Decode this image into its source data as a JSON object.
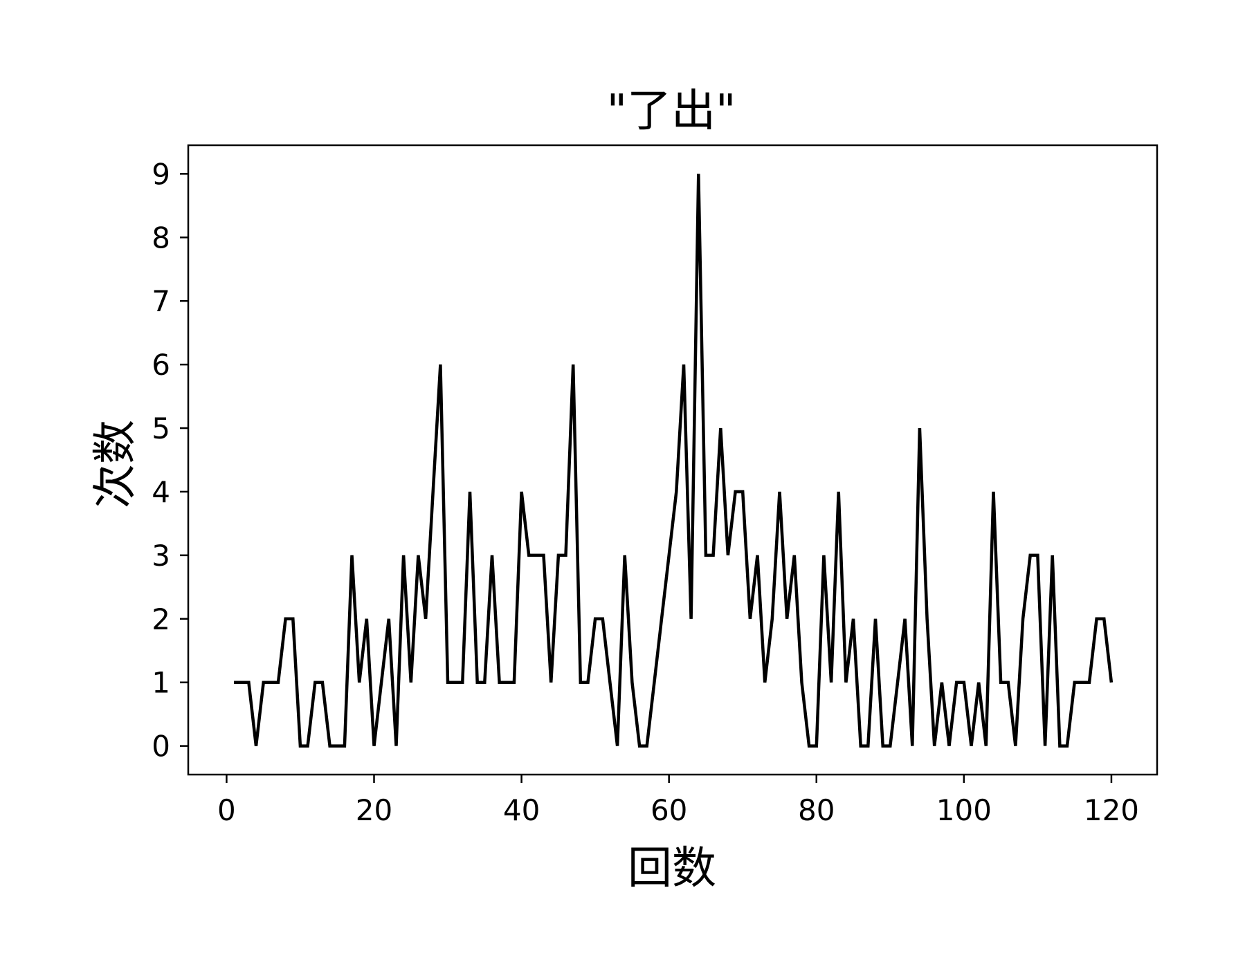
{
  "chart_data": {
    "type": "line",
    "title": "\"了出\"",
    "xlabel": "回数",
    "ylabel": "次数",
    "xlim": [
      -5.2,
      126.2
    ],
    "ylim": [
      -0.45,
      9.45
    ],
    "xticks": [
      0,
      20,
      40,
      60,
      80,
      100,
      120
    ],
    "yticks": [
      0,
      1,
      2,
      3,
      4,
      5,
      6,
      7,
      8,
      9
    ],
    "grid": false,
    "line_color": "#000000",
    "series": [
      {
        "x": [
          1,
          2,
          3,
          4,
          5,
          6,
          7,
          8,
          9,
          10,
          11,
          12,
          13,
          14,
          15,
          16,
          17,
          18,
          19,
          20,
          21,
          22,
          23,
          24,
          25,
          26,
          27,
          28,
          29,
          30,
          31,
          32,
          33,
          34,
          35,
          36,
          37,
          38,
          39,
          40,
          41,
          42,
          43,
          44,
          45,
          46,
          47,
          48,
          49,
          50,
          51,
          52,
          53,
          54,
          55,
          56,
          57,
          58,
          59,
          60,
          61,
          62,
          63,
          64,
          65,
          66,
          67,
          68,
          69,
          70,
          71,
          72,
          73,
          74,
          75,
          76,
          77,
          78,
          79,
          80,
          81,
          82,
          83,
          84,
          85,
          86,
          87,
          88,
          89,
          90,
          91,
          92,
          93,
          94,
          95,
          96,
          97,
          98,
          99,
          100,
          101,
          102,
          103,
          104,
          105,
          106,
          107,
          108,
          109,
          110,
          111,
          112,
          113,
          114,
          115,
          116,
          117,
          118,
          119,
          120
        ],
        "y": [
          1,
          1,
          1,
          0,
          1,
          1,
          1,
          2,
          2,
          0,
          0,
          1,
          1,
          0,
          0,
          0,
          3,
          1,
          2,
          0,
          1,
          2,
          0,
          3,
          1,
          3,
          2,
          4,
          6,
          1,
          1,
          1,
          4,
          1,
          1,
          3,
          1,
          1,
          1,
          4,
          3,
          3,
          3,
          1,
          3,
          3,
          6,
          1,
          1,
          2,
          2,
          1,
          0,
          3,
          1,
          0,
          0,
          1,
          2,
          3,
          4,
          6,
          2,
          9,
          3,
          3,
          5,
          3,
          4,
          4,
          2,
          3,
          1,
          2,
          4,
          2,
          3,
          1,
          0,
          0,
          3,
          1,
          4,
          1,
          2,
          0,
          0,
          2,
          0,
          0,
          1,
          2,
          0,
          5,
          2,
          0,
          1,
          0,
          1,
          1,
          0,
          1,
          0,
          4,
          1,
          1,
          0,
          2,
          3,
          3,
          0,
          3,
          0,
          0,
          1,
          1,
          1,
          2,
          2,
          1
        ]
      }
    ]
  }
}
